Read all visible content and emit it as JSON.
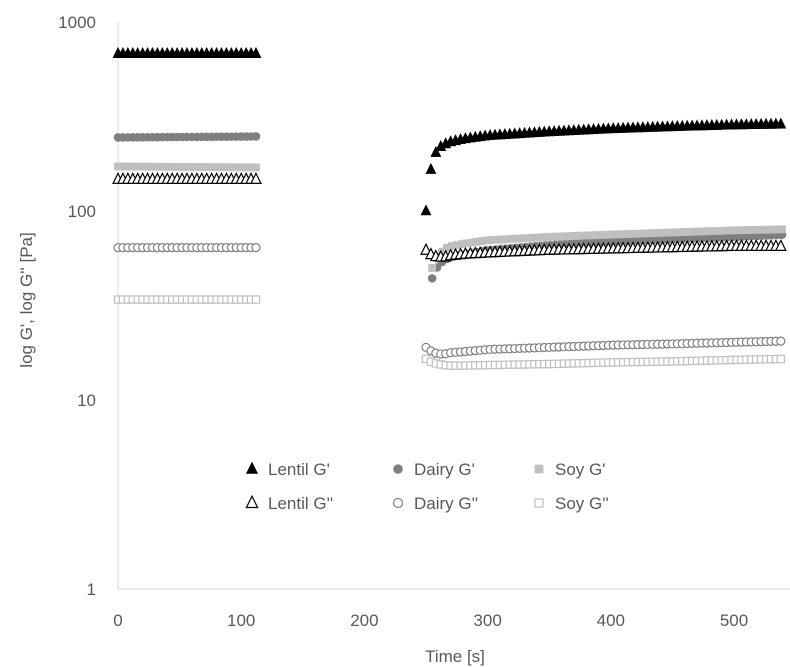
{
  "chart_data": {
    "type": "scatter",
    "xlabel": "Time [s]",
    "ylabel": "log G', log G'' [Pa]",
    "xlim": [
      0,
      540
    ],
    "ylim": [
      1,
      1000
    ],
    "yscale": "log",
    "x_ticks": [
      "0",
      "100",
      "200",
      "300",
      "400",
      "500"
    ],
    "y_ticks": [
      "1",
      "10",
      "100",
      "1000"
    ],
    "grid": false,
    "legend_position": "bottom-center",
    "series": [
      {
        "name": "Lentil G'",
        "marker": "triangle",
        "fill": "#000000",
        "stroke": "#000000",
        "segments": [
          {
            "x": [
              0,
              115
            ],
            "y": [
              680,
              680
            ]
          },
          {
            "x": [
              250,
              255,
              260,
              265,
              270,
              280,
              300,
              350,
              400,
              450,
              500,
              540
            ],
            "y": [
              100,
              188,
              215,
              225,
              232,
              240,
              250,
              262,
              272,
              279,
              285,
              288
            ]
          }
        ]
      },
      {
        "name": "Dairy G'",
        "marker": "circle",
        "fill": "#7f7f7f",
        "stroke": "#7f7f7f",
        "segments": [
          {
            "x": [
              0,
              115
            ],
            "y": [
              245,
              248
            ]
          },
          {
            "x": [
              255,
              260,
              265,
              270,
              280,
              300,
              350,
              400,
              450,
              500,
              540
            ],
            "y": [
              44,
              52,
              55,
              57,
              59,
              62,
              66,
              69,
              71,
              73,
              75
            ]
          }
        ]
      },
      {
        "name": "Soy G'",
        "marker": "square",
        "fill": "#bfbfbf",
        "stroke": "#bfbfbf",
        "segments": [
          {
            "x": [
              0,
              115
            ],
            "y": [
              172,
              170
            ]
          },
          {
            "x": [
              255,
              260,
              265,
              270,
              280,
              300,
              350,
              400,
              450,
              500,
              540
            ],
            "y": [
              50,
              58,
              63,
              65,
              67,
              70,
              73,
              75,
              77,
              79,
              80
            ]
          }
        ]
      },
      {
        "name": "Lentil G''",
        "marker": "triangle-open",
        "fill": "#ffffff",
        "stroke": "#000000",
        "segments": [
          {
            "x": [
              0,
              115
            ],
            "y": [
              147,
              147
            ]
          },
          {
            "x": [
              250,
              255,
              260,
              265,
              270,
              280,
              300,
              350,
              400,
              450,
              500,
              540
            ],
            "y": [
              62,
              58,
              57,
              57,
              58,
              59,
              60,
              62,
              63,
              64,
              65,
              65
            ]
          }
        ]
      },
      {
        "name": "Dairy G''",
        "marker": "circle-open",
        "fill": "#ffffff",
        "stroke": "#7f7f7f",
        "segments": [
          {
            "x": [
              0,
              115
            ],
            "y": [
              64,
              64
            ]
          },
          {
            "x": [
              250,
              255,
              260,
              265,
              270,
              280,
              300,
              350,
              400,
              450,
              500,
              540
            ],
            "y": [
              19,
              18,
              17.5,
              17.5,
              17.8,
              18,
              18.5,
              19,
              19.5,
              19.8,
              20.2,
              20.5
            ]
          }
        ]
      },
      {
        "name": "Soy G''",
        "marker": "square-open",
        "fill": "#ffffff",
        "stroke": "#bfbfbf",
        "segments": [
          {
            "x": [
              0,
              115
            ],
            "y": [
              34,
              34
            ]
          },
          {
            "x": [
              250,
              255,
              260,
              265,
              270,
              280,
              300,
              350,
              400,
              450,
              500,
              540
            ],
            "y": [
              16.5,
              15.8,
              15.5,
              15.3,
              15.2,
              15.2,
              15.3,
              15.5,
              15.8,
              16,
              16.3,
              16.5
            ]
          }
        ]
      }
    ]
  }
}
